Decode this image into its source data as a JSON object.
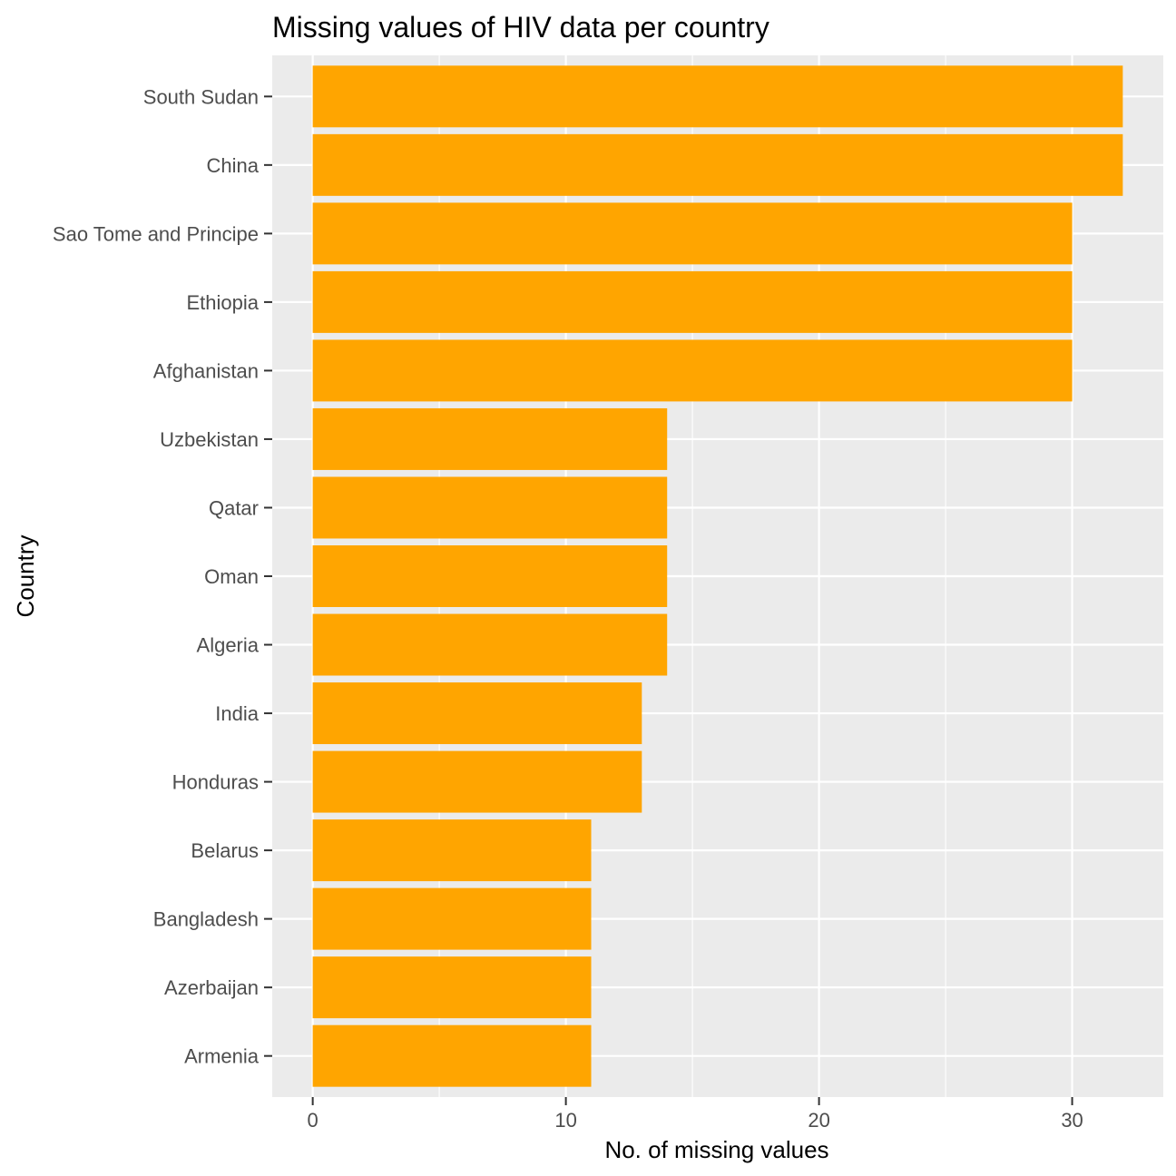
{
  "chart_data": {
    "type": "bar",
    "orientation": "horizontal",
    "title": "Missing values of HIV data per country",
    "xlabel": "No. of missing values",
    "ylabel": "Country",
    "categories": [
      "South Sudan",
      "China",
      "Sao Tome and Principe",
      "Ethiopia",
      "Afghanistan",
      "Uzbekistan",
      "Qatar",
      "Oman",
      "Algeria",
      "India",
      "Honduras",
      "Belarus",
      "Bangladesh",
      "Azerbaijan",
      "Armenia"
    ],
    "values": [
      32,
      32,
      30,
      30,
      30,
      14,
      14,
      14,
      14,
      13,
      13,
      11,
      11,
      11,
      11
    ],
    "xlim": [
      -1.6,
      33.6
    ],
    "xticks": [
      0,
      10,
      20,
      30
    ],
    "xticks_minor": [
      5,
      15,
      25
    ],
    "bar_color": "#FFA500",
    "panel_background": "#EBEBEB",
    "grid_color": "#FFFFFF",
    "grid": true,
    "legend": "none"
  }
}
